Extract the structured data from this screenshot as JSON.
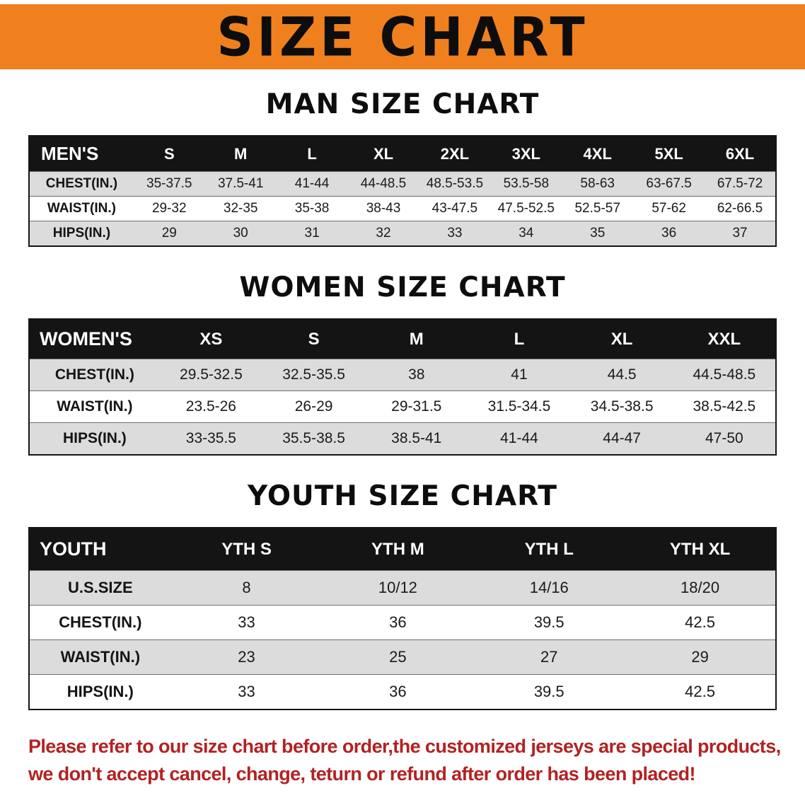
{
  "banner": {
    "title": "SIZE CHART",
    "background_color": "#F0801E",
    "text_color": "#0d0d0d"
  },
  "colors": {
    "table_header_bg": "#141414",
    "table_header_text": "#ffffff",
    "row_stripe": "#DCDCDC",
    "note_red": "#B22222"
  },
  "sections": [
    {
      "heading": "MAN SIZE CHART",
      "header": [
        "MEN'S",
        "S",
        "M",
        "L",
        "XL",
        "2XL",
        "3XL",
        "4XL",
        "5XL",
        "6XL"
      ],
      "rows": [
        [
          "CHEST(IN.)",
          "35-37.5",
          "37.5-41",
          "41-44",
          "44-48.5",
          "48.5-53.5",
          "53.5-58",
          "58-63",
          "63-67.5",
          "67.5-72"
        ],
        [
          "WAIST(IN.)",
          "29-32",
          "32-35",
          "35-38",
          "38-43",
          "43-47.5",
          "47.5-52.5",
          "52.5-57",
          "57-62",
          "62-66.5"
        ],
        [
          "HIPS(IN.)",
          "29",
          "30",
          "31",
          "32",
          "33",
          "34",
          "35",
          "36",
          "37"
        ]
      ]
    },
    {
      "heading": "WOMEN SIZE CHART",
      "header": [
        "WOMEN'S",
        "XS",
        "S",
        "M",
        "L",
        "XL",
        "XXL"
      ],
      "rows": [
        [
          "CHEST(IN.)",
          "29.5-32.5",
          "32.5-35.5",
          "38",
          "41",
          "44.5",
          "44.5-48.5"
        ],
        [
          "WAIST(IN.)",
          "23.5-26",
          "26-29",
          "29-31.5",
          "31.5-34.5",
          "34.5-38.5",
          "38.5-42.5"
        ],
        [
          "HIPS(IN.)",
          "33-35.5",
          "35.5-38.5",
          "38.5-41",
          "41-44",
          "44-47",
          "47-50"
        ]
      ]
    },
    {
      "heading": "YOUTH SIZE CHART",
      "header": [
        "YOUTH",
        "YTH S",
        "YTH M",
        "YTH L",
        "YTH XL"
      ],
      "rows": [
        [
          "U.S.SIZE",
          "8",
          "10/12",
          "14/16",
          "18/20"
        ],
        [
          "CHEST(IN.)",
          "33",
          "36",
          "39.5",
          "42.5"
        ],
        [
          "WAIST(IN.)",
          "23",
          "25",
          "27",
          "29"
        ],
        [
          "HIPS(IN.)",
          "33",
          "36",
          "39.5",
          "42.5"
        ]
      ]
    }
  ],
  "footer": {
    "line1": "Please refer to our size chart before order,the customized jerseys are special products,",
    "line2": "we don't accept cancel, change, teturn or refund after order has been placed!"
  }
}
